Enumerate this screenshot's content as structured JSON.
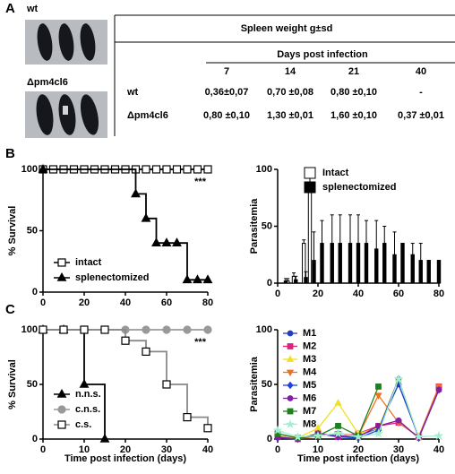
{
  "panel_labels": [
    "A",
    "B",
    "C"
  ],
  "photos": [
    "wt",
    "Δpm4cl6"
  ],
  "table": {
    "title": "Spleen weight  g±sd",
    "subtitle": "Days post infection",
    "columns": [
      "7",
      "14",
      "21",
      "40"
    ],
    "rows": [
      [
        "wt",
        "0,36±0,07",
        "0,70 ±0,08",
        "0,80 ±0,10",
        "-"
      ],
      [
        "Δpm4cl6",
        "0,80 ±0,10",
        "1,30 ±0,01",
        "1,60 ±0,10",
        "0,37 ±0,01"
      ]
    ]
  },
  "chart_data": [
    {
      "type": "survival",
      "ylabel": "% Survival",
      "xlim": [
        0,
        80
      ],
      "ylim": [
        0,
        100
      ],
      "xticks": [
        0,
        20,
        40,
        60,
        80
      ],
      "yticks": [
        0,
        50,
        100
      ],
      "annotation": "***",
      "legend": "bottom-left",
      "series": [
        {
          "name": "intact",
          "color": "#000000",
          "marker": "square",
          "filled": false,
          "x": [
            0,
            5,
            10,
            15,
            20,
            25,
            30,
            35,
            40,
            45,
            50,
            55,
            60,
            65,
            70,
            75,
            80
          ],
          "values": [
            100,
            100,
            100,
            100,
            100,
            100,
            100,
            100,
            100,
            100,
            100,
            100,
            100,
            100,
            100,
            100,
            100
          ]
        },
        {
          "name": "splenectomized",
          "color": "#000000",
          "marker": "triangle",
          "filled": true,
          "x": [
            0,
            45,
            50,
            55,
            60,
            65,
            70,
            75,
            80
          ],
          "values": [
            100,
            80,
            60,
            40,
            40,
            40,
            10,
            10,
            10
          ]
        }
      ]
    },
    {
      "type": "bar",
      "ylabel": "Parasitemia",
      "xlim": [
        0,
        80
      ],
      "ylim": [
        0,
        100
      ],
      "xticks": [
        0,
        20,
        40,
        60,
        80
      ],
      "yticks": [
        0,
        50,
        100
      ],
      "legend": "top-right",
      "series": [
        {
          "name": "Intact",
          "color": "#ffffff",
          "x": [
            5,
            8,
            13,
            16
          ],
          "values": [
            2,
            6,
            35,
            80
          ],
          "errors": [
            2,
            3,
            3,
            18
          ]
        },
        {
          "name": "splenectomized",
          "color": "#000000",
          "x": [
            4,
            9,
            14,
            18,
            22,
            27,
            31,
            36,
            40,
            44,
            49,
            53,
            58,
            62,
            67,
            71,
            75,
            80
          ],
          "values": [
            2,
            3,
            5,
            20,
            35,
            35,
            35,
            35,
            35,
            35,
            30,
            35,
            25,
            35,
            25,
            20,
            20,
            20
          ],
          "errors": [
            2,
            3,
            5,
            25,
            20,
            25,
            25,
            25,
            25,
            20,
            25,
            15,
            20,
            0,
            10,
            15,
            0,
            0
          ]
        }
      ]
    },
    {
      "type": "survival",
      "ylabel": "% Survival",
      "xlabel": "Time post infection (days)",
      "xlim": [
        0,
        40
      ],
      "ylim": [
        0,
        100
      ],
      "xticks": [
        0,
        10,
        20,
        30,
        40
      ],
      "yticks": [
        0,
        50,
        100
      ],
      "annotation": "***",
      "legend": "bottom-left",
      "series": [
        {
          "name": "n.n.s.",
          "color": "#000000",
          "marker": "triangle",
          "filled": true,
          "x": [
            0,
            5,
            10,
            15
          ],
          "values": [
            100,
            100,
            50,
            0
          ]
        },
        {
          "name": "c.n.s.",
          "color": "#999999",
          "marker": "circle",
          "filled": true,
          "x": [
            0,
            5,
            10,
            15,
            20,
            25,
            30,
            35,
            40
          ],
          "values": [
            100,
            100,
            100,
            100,
            100,
            100,
            100,
            100,
            100
          ]
        },
        {
          "name": "c.s.",
          "color": "#888888",
          "marker": "square",
          "filled": false,
          "x": [
            0,
            5,
            10,
            15,
            20,
            25,
            30,
            35,
            40
          ],
          "values": [
            100,
            100,
            100,
            100,
            90,
            80,
            50,
            20,
            10
          ]
        }
      ]
    },
    {
      "type": "line",
      "ylabel": "Parasitemia",
      "xlabel": "Time post infection (days)",
      "xlim": [
        0,
        40
      ],
      "ylim": [
        0,
        100
      ],
      "xticks": [
        0,
        10,
        20,
        30,
        40
      ],
      "yticks": [
        0,
        50,
        100
      ],
      "legend": "top-left",
      "x": [
        0,
        5,
        10,
        15,
        20,
        25,
        30,
        35,
        40
      ],
      "series": [
        {
          "name": "M1",
          "color": "#1f3fbf",
          "marker": "circle",
          "values": [
            3,
            1,
            3,
            5,
            3,
            10,
            50,
            2,
            47
          ]
        },
        {
          "name": "M2",
          "color": "#e0207a",
          "marker": "square",
          "values": [
            2,
            0,
            5,
            2,
            5,
            12,
            15,
            2,
            48
          ]
        },
        {
          "name": "M3",
          "color": "#f0e020",
          "marker": "triangle",
          "values": [
            3,
            1,
            10,
            33,
            5,
            10,
            55,
            2,
            45
          ]
        },
        {
          "name": "M4",
          "color": "#f07020",
          "marker": "triangle-down",
          "values": [
            2,
            0,
            3,
            5,
            3,
            40,
            15,
            2,
            48
          ]
        },
        {
          "name": "M5",
          "color": "#2040e0",
          "marker": "diamond",
          "values": [
            1,
            0,
            5,
            2,
            1,
            8,
            55,
            1,
            45
          ]
        },
        {
          "name": "M6",
          "color": "#8020a0",
          "marker": "circle",
          "values": [
            2,
            0,
            5,
            3,
            2,
            12,
            17,
            1,
            45
          ]
        },
        {
          "name": "M7",
          "color": "#208020",
          "marker": "square",
          "values": [
            5,
            1,
            3,
            12,
            3,
            48,
            null,
            null,
            null
          ]
        },
        {
          "name": "M8",
          "color": "#a0f0d0",
          "marker": "star",
          "values": [
            8,
            2,
            3,
            5,
            2,
            5,
            55,
            2,
            3
          ]
        }
      ]
    }
  ]
}
